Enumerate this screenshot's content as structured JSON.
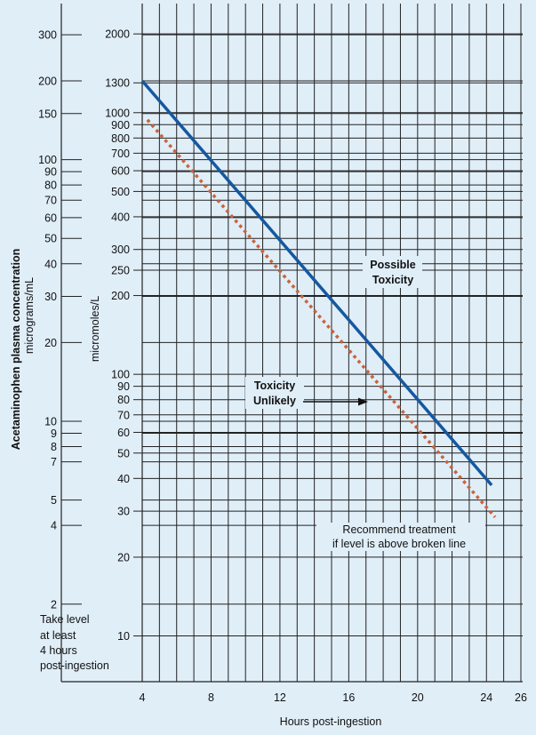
{
  "chart_data": {
    "type": "line",
    "title": "",
    "x_axis": {
      "label": "Hours post-ingestion",
      "range": [
        4,
        26
      ],
      "ticks": [
        4,
        8,
        12,
        16,
        20,
        24,
        26
      ]
    },
    "y_axis_left": {
      "label_line1": "Acetaminophen plasma concentration",
      "label_line2": "micrograms/mL",
      "scale": "log",
      "ticks": [
        2,
        4,
        5,
        7,
        8,
        9,
        10,
        20,
        30,
        40,
        50,
        60,
        70,
        80,
        90,
        100,
        150,
        200,
        300
      ]
    },
    "y_axis_inner": {
      "label": "micromoles/L",
      "scale": "log",
      "ticks": [
        10,
        20,
        30,
        40,
        50,
        60,
        70,
        80,
        90,
        100,
        200,
        250,
        300,
        400,
        500,
        600,
        700,
        800,
        900,
        1000,
        1300,
        2000
      ]
    },
    "grid": true,
    "series": [
      {
        "name": "",
        "style": "solid",
        "color": "#1558a0",
        "x": [
          4,
          24.3
        ],
        "y_micrograms_per_mL": [
          200,
          5.7
        ]
      },
      {
        "name": "",
        "style": "dotted",
        "color": "#c8643c",
        "x": [
          4.3,
          24.5
        ],
        "y_micrograms_per_mL": [
          142,
          4.3
        ]
      }
    ],
    "annotations": {
      "possible_toxicity": [
        "Possible",
        "Toxicity"
      ],
      "toxicity_unlikely": [
        "Toxicity",
        "Unlikely"
      ],
      "recommend": [
        "Recommend treatment",
        "if level is above broken line"
      ],
      "take_level": [
        "Take level",
        "at least",
        "4 hours",
        "post-ingestion"
      ]
    }
  }
}
